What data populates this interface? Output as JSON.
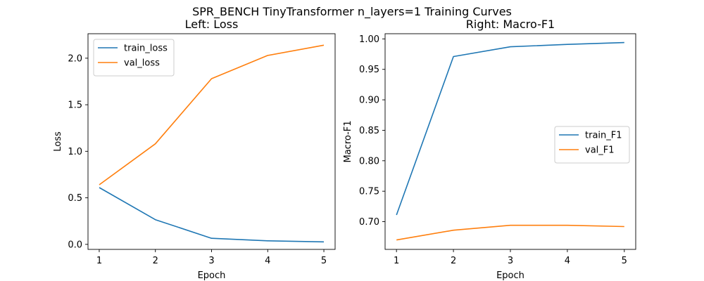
{
  "suptitle": "SPR_BENCH TinyTransformer n_layers=1 Training Curves",
  "colors": {
    "blue": "#1f77b4",
    "orange": "#ff7f0e"
  },
  "chart_data": [
    {
      "type": "line",
      "title": "Left: Loss",
      "xlabel": "Epoch",
      "ylabel": "Loss",
      "x": [
        1,
        2,
        3,
        4,
        5
      ],
      "xticks": [
        "1",
        "2",
        "3",
        "4",
        "5"
      ],
      "yticks": [
        "0.0",
        "0.5",
        "1.0",
        "1.5",
        "2.0"
      ],
      "ytick_values": [
        0.0,
        0.5,
        1.0,
        1.5,
        2.0
      ],
      "xlim": [
        0.8,
        5.2
      ],
      "ylim": [
        -0.054,
        2.263
      ],
      "grid": false,
      "legend": "top-left",
      "series": [
        {
          "name": "train_loss",
          "color": "#1f77b4",
          "values": [
            0.61,
            0.265,
            0.065,
            0.038,
            0.027
          ]
        },
        {
          "name": "val_loss",
          "color": "#ff7f0e",
          "values": [
            0.64,
            1.08,
            1.78,
            2.03,
            2.14
          ]
        }
      ]
    },
    {
      "type": "line",
      "title": "Right: Macro-F1",
      "xlabel": "Epoch",
      "ylabel": "Macro-F1",
      "x": [
        1,
        2,
        3,
        4,
        5
      ],
      "xticks": [
        "1",
        "2",
        "3",
        "4",
        "5"
      ],
      "yticks": [
        "0.70",
        "0.75",
        "0.80",
        "0.85",
        "0.90",
        "0.95",
        "1.00"
      ],
      "ytick_values": [
        0.7,
        0.75,
        0.8,
        0.85,
        0.9,
        0.95,
        1.0
      ],
      "xlim": [
        0.8,
        5.2
      ],
      "ylim": [
        0.6545,
        1.0085
      ],
      "grid": false,
      "legend": "center-right",
      "series": [
        {
          "name": "train_F1",
          "color": "#1f77b4",
          "values": [
            0.711,
            0.971,
            0.987,
            0.991,
            0.994
          ]
        },
        {
          "name": "val_F1",
          "color": "#ff7f0e",
          "values": [
            0.67,
            0.686,
            0.694,
            0.694,
            0.692
          ]
        }
      ]
    }
  ]
}
